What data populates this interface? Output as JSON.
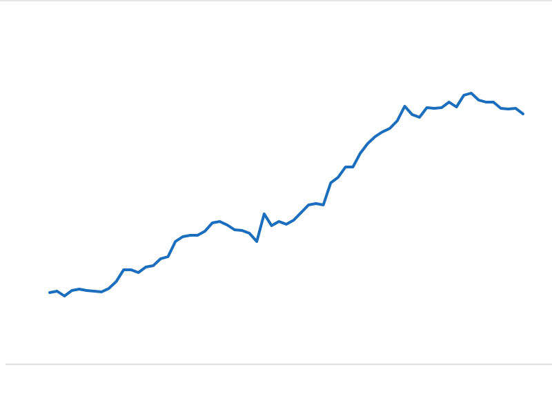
{
  "chart_data": {
    "type": "line",
    "x": [
      0,
      1,
      2,
      3,
      4,
      5,
      6,
      7,
      8,
      9,
      10,
      11,
      12,
      13,
      14,
      15,
      16,
      17,
      18,
      19,
      20,
      21,
      22,
      23,
      24,
      25,
      26,
      27,
      28,
      29,
      30,
      31,
      32,
      33,
      34,
      35,
      36,
      37,
      38,
      39,
      40,
      41,
      42,
      43,
      44,
      45,
      46,
      47,
      48,
      49,
      50,
      51,
      52,
      53,
      54,
      55,
      56,
      57,
      58,
      59,
      60,
      61,
      62,
      63,
      64
    ],
    "xlim": [
      0,
      64
    ],
    "ylim": [
      0,
      100
    ],
    "series": [
      {
        "color": "#1b6ebd",
        "values": [
          20.8,
          21.2,
          19.8,
          21.4,
          21.8,
          21.4,
          21.2,
          21.0,
          22.0,
          24.0,
          27.4,
          27.4,
          26.6,
          28.2,
          28.6,
          30.6,
          31.2,
          35.6,
          37.0,
          37.4,
          37.4,
          38.6,
          41.0,
          41.4,
          40.4,
          39.0,
          38.8,
          38.0,
          35.6,
          43.6,
          40.2,
          41.4,
          40.6,
          41.8,
          44.0,
          46.2,
          46.6,
          46.2,
          52.6,
          54.2,
          57.2,
          57.2,
          61.2,
          64.0,
          66.0,
          67.4,
          68.4,
          70.6,
          74.8,
          72.4,
          71.6,
          74.4,
          74.2,
          74.4,
          76.0,
          74.6,
          78.0,
          78.6,
          76.6,
          76.0,
          76.0,
          74.2,
          74.0,
          74.2,
          72.6
        ]
      }
    ]
  }
}
